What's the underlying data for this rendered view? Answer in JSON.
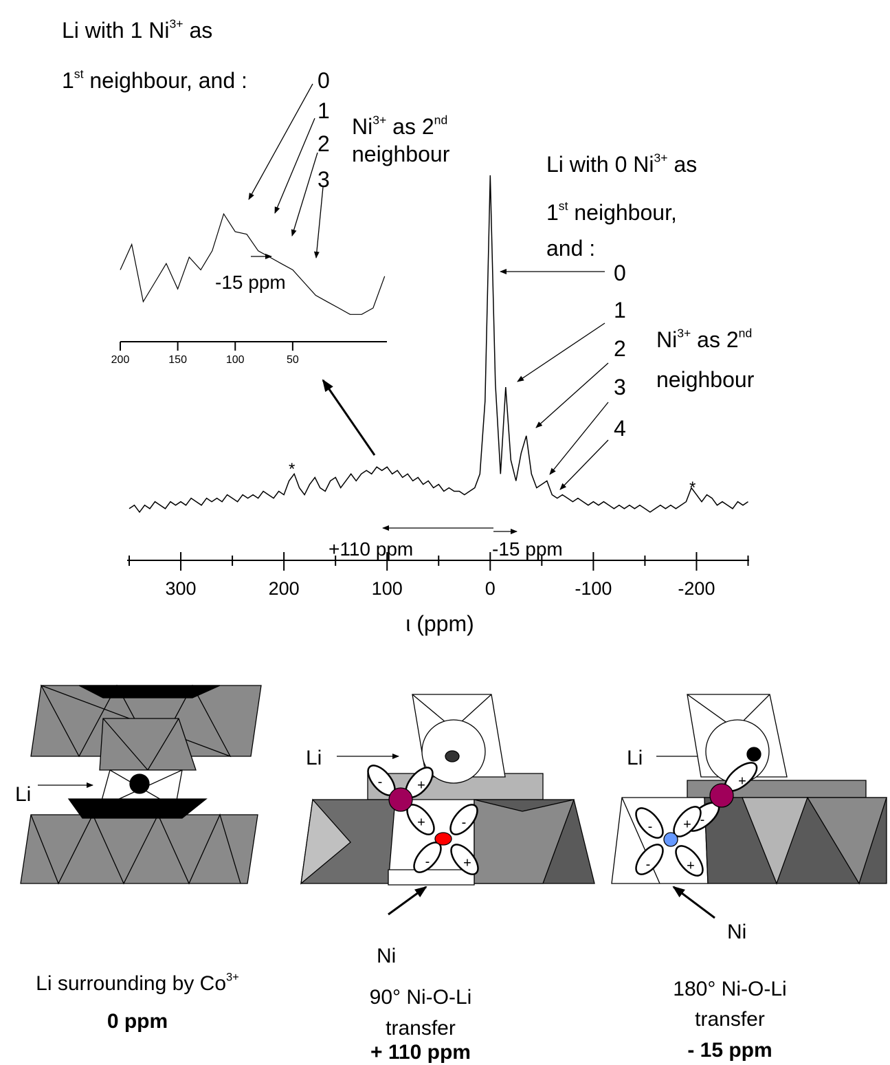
{
  "chart_data": [
    {
      "type": "line",
      "color": "#000000",
      "xlabel": "ι (ppm)",
      "xlim": [
        352,
        -251
      ],
      "ylim": [
        0,
        100
      ],
      "xticks": [
        300,
        200,
        100,
        0,
        -100,
        -200
      ],
      "xminorticks": [
        350,
        250,
        150,
        50,
        -50,
        -150,
        -250
      ],
      "x": [
        350,
        345,
        340,
        335,
        330,
        325,
        320,
        315,
        310,
        305,
        300,
        295,
        290,
        285,
        280,
        275,
        270,
        265,
        260,
        255,
        250,
        245,
        240,
        235,
        230,
        225,
        220,
        215,
        210,
        205,
        200,
        195,
        190,
        185,
        180,
        175,
        170,
        165,
        160,
        155,
        150,
        145,
        140,
        135,
        130,
        125,
        120,
        115,
        110,
        105,
        100,
        95,
        90,
        85,
        80,
        75,
        70,
        65,
        60,
        55,
        50,
        45,
        40,
        35,
        30,
        25,
        20,
        15,
        10,
        5,
        0,
        -5,
        -10,
        -15,
        -20,
        -25,
        -30,
        -35,
        -40,
        -45,
        -50,
        -55,
        -60,
        -65,
        -70,
        -75,
        -80,
        -85,
        -90,
        -95,
        -100,
        -105,
        -110,
        -115,
        -120,
        -125,
        -130,
        -135,
        -140,
        -145,
        -150,
        -155,
        -160,
        -165,
        -170,
        -175,
        -180,
        -185,
        -190,
        -195,
        -200,
        -205,
        -210,
        -215,
        -220,
        -225,
        -230,
        -235,
        -240,
        -245,
        -250
      ],
      "values": [
        4,
        5,
        3,
        5,
        4,
        6,
        5,
        4,
        6,
        5,
        6,
        5,
        7,
        6,
        5,
        7,
        6,
        7,
        6,
        8,
        7,
        6,
        8,
        7,
        8,
        7,
        9,
        8,
        7,
        9,
        8,
        12,
        14,
        10,
        8,
        11,
        13,
        10,
        9,
        12,
        13,
        10,
        12,
        14,
        12,
        14,
        15,
        14,
        16,
        15,
        16,
        14,
        15,
        13,
        14,
        12,
        13,
        11,
        12,
        10,
        11,
        9,
        10,
        9,
        9,
        8,
        9,
        10,
        14,
        35,
        100,
        40,
        14,
        39,
        18,
        12,
        20,
        25,
        14,
        10,
        11,
        12,
        8,
        7,
        8,
        7,
        6,
        7,
        6,
        5,
        6,
        5,
        6,
        5,
        4,
        5,
        4,
        5,
        4,
        5,
        4,
        3,
        4,
        5,
        4,
        5,
        4,
        5,
        6,
        10,
        8,
        6,
        8,
        7,
        5,
        6,
        5,
        4,
        6,
        5,
        6
      ],
      "annotations": [
        [
          "Li with 0 Ni",
          "3+",
          " as"
        ],
        [
          "1",
          "st",
          " neighbour,"
        ],
        [
          "and :"
        ],
        [
          "0"
        ],
        [
          "1"
        ],
        [
          "2"
        ],
        [
          "3"
        ],
        [
          "4"
        ],
        [
          "Ni",
          "3+",
          " as 2",
          "nd"
        ],
        [
          "neighbour"
        ],
        [
          "*"
        ],
        [
          "*"
        ],
        [
          "+110 ppm"
        ],
        [
          "-15 ppm"
        ]
      ]
    },
    {
      "type": "line",
      "color": "#000000",
      "xlim": [
        200,
        -32
      ],
      "ylim": [
        0,
        100
      ],
      "xticks": [
        200,
        150,
        100,
        50
      ],
      "x": [
        200,
        190,
        180,
        170,
        160,
        150,
        140,
        130,
        120,
        110,
        100,
        90,
        80,
        70,
        60,
        50,
        40,
        30,
        20,
        10,
        0,
        -10,
        -20,
        -30
      ],
      "values": [
        50,
        70,
        25,
        40,
        55,
        35,
        60,
        50,
        65,
        94,
        80,
        78,
        65,
        60,
        55,
        50,
        40,
        30,
        25,
        20,
        15,
        15,
        20,
        45
      ],
      "annotations": [
        [
          "Li with 1 Ni",
          "3+",
          " as"
        ],
        [
          "1",
          "st",
          " neighbour, and :"
        ],
        [
          "0"
        ],
        [
          "1"
        ],
        [
          "2"
        ],
        [
          "3"
        ],
        [
          "Ni",
          "3+",
          " as 2",
          "nd"
        ],
        [
          "neighbour"
        ],
        [
          "-15 ppm"
        ]
      ]
    }
  ],
  "diagrams": [
    {
      "labels": [
        "Li"
      ],
      "caption": [
        [
          "Li surrounding by Co",
          "3+"
        ]
      ],
      "shift": "0 ppm",
      "signs": []
    },
    {
      "labels": [
        "Li",
        "Ni"
      ],
      "caption": [
        [
          "90° Ni-O-Li"
        ],
        [
          "transfer"
        ]
      ],
      "shift": "+ 110 ppm",
      "signs": [
        "-",
        "+",
        "+",
        "-",
        "-",
        "+"
      ]
    },
    {
      "labels": [
        "Li",
        "Ni"
      ],
      "caption": [
        [
          "180° Ni-O-Li"
        ],
        [
          "transfer"
        ]
      ],
      "shift": "- 15 ppm",
      "signs": [
        "+",
        "-",
        "-",
        "+",
        "-",
        "+"
      ]
    }
  ]
}
